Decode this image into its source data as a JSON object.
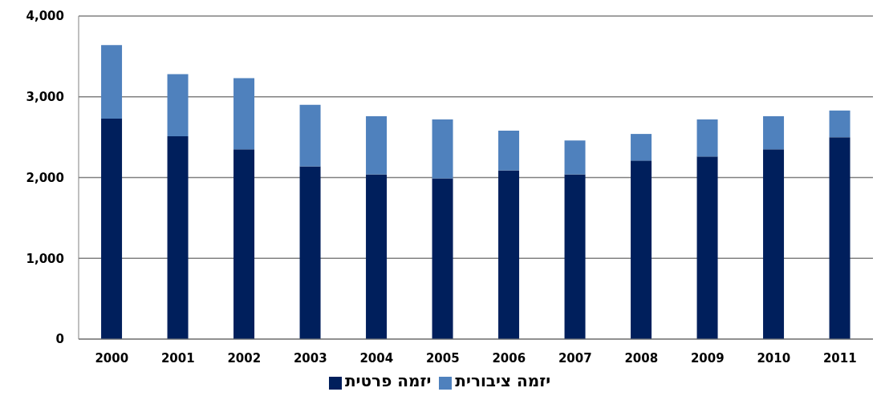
{
  "chart_data": {
    "type": "bar",
    "stacked": true,
    "categories": [
      "2000",
      "2001",
      "2002",
      "2003",
      "2004",
      "2005",
      "2006",
      "2007",
      "2008",
      "2009",
      "2010",
      "2011"
    ],
    "series": [
      {
        "name": "יזמה פרטית",
        "color": "#001f5c",
        "values": [
          2730,
          2510,
          2350,
          2140,
          2040,
          1990,
          2090,
          2040,
          2210,
          2260,
          2350,
          2500
        ]
      },
      {
        "name": "יזמה ציבורית",
        "color": "#4f81bd",
        "values": [
          910,
          770,
          880,
          760,
          720,
          730,
          490,
          420,
          330,
          460,
          410,
          330
        ]
      }
    ],
    "ylim": [
      0,
      4000
    ],
    "yticks": [
      0,
      {
        "value": 1000,
        "label": "1,000"
      },
      {
        "value": 2000,
        "label": "2,000"
      },
      {
        "value": 3000,
        "label": "3,000"
      },
      {
        "value": 4000,
        "label": "4,000"
      }
    ],
    "grid": "y",
    "legend": "bottom"
  }
}
